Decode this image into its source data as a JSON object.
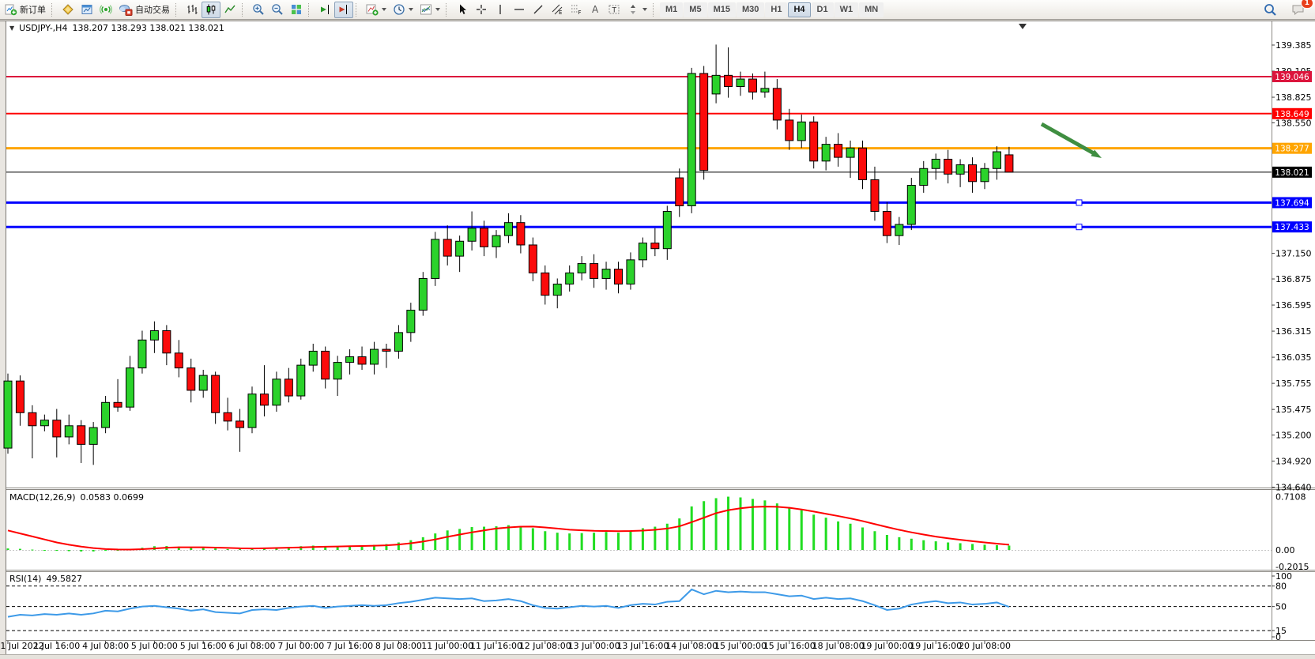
{
  "toolbar": {
    "new_order": "新订单",
    "autotrade": "自动交易",
    "timeframes": [
      "M1",
      "M5",
      "M15",
      "M30",
      "H1",
      "H4",
      "D1",
      "W1",
      "MN"
    ],
    "active_timeframe": "H4",
    "chat_badge": "1"
  },
  "chart": {
    "title_symbol": "USDJPY-,H4",
    "title_ohlc": "138.207 138.293 138.021 138.021",
    "expand_glyph": "▼",
    "shift_marker": "▼"
  },
  "chart_data": {
    "type": "candlestick",
    "symbol": "USDJPY-",
    "timeframe": "H4",
    "current": {
      "open": 138.207,
      "high": 138.293,
      "low": 138.021,
      "close": 138.021
    },
    "colors": {
      "bull": "#2bd22b",
      "bear": "#fb0b0b",
      "outline": "#000000",
      "macd_hist": "#21dd21",
      "macd_signal": "#ff0000",
      "rsi": "#3d9ae8",
      "arrow": "#3f8e41"
    },
    "x_labels": [
      "1 Jul 2022",
      "1 Jul 16:00",
      "4 Jul 08:00",
      "5 Jul 00:00",
      "5 Jul 16:00",
      "6 Jul 08:00",
      "7 Jul 00:00",
      "7 Jul 16:00",
      "8 Jul 08:00",
      "11 Jul 00:00",
      "11 Jul 16:00",
      "12 Jul 08:00",
      "13 Jul 00:00",
      "13 Jul 16:00",
      "14 Jul 08:00",
      "15 Jul 00:00",
      "15 Jul 16:00",
      "18 Jul 08:00",
      "19 Jul 00:00",
      "19 Jul 16:00",
      "20 Jul 08:00"
    ],
    "y_ticks": [
      139.385,
      139.105,
      138.825,
      138.55,
      137.15,
      136.875,
      136.595,
      136.315,
      136.035,
      135.755,
      135.475,
      135.2,
      134.92,
      134.64
    ],
    "levels": [
      {
        "price": 139.046,
        "label": "139.046",
        "color": "#dc143c",
        "width": 2,
        "handle": false
      },
      {
        "price": 138.649,
        "label": "138.649",
        "color": "#ff0000",
        "width": 2,
        "handle": false
      },
      {
        "price": 138.277,
        "label": "138.277",
        "color": "#ffa500",
        "width": 3,
        "handle": false
      },
      {
        "price": 138.021,
        "label": "138.021",
        "color": "#000000",
        "width": 1,
        "handle": false
      },
      {
        "price": 137.694,
        "label": "137.694",
        "color": "#0000ff",
        "width": 3,
        "handle": true
      },
      {
        "price": 137.433,
        "label": "137.433",
        "color": "#0000ff",
        "width": 3,
        "handle": true
      }
    ],
    "candles": [
      [
        135.06,
        135.86,
        135.0,
        135.78
      ],
      [
        135.78,
        135.84,
        135.3,
        135.44
      ],
      [
        135.44,
        135.52,
        134.95,
        135.3
      ],
      [
        135.3,
        135.42,
        135.24,
        135.36
      ],
      [
        135.36,
        135.48,
        134.96,
        135.18
      ],
      [
        135.18,
        135.42,
        135.1,
        135.3
      ],
      [
        135.3,
        135.36,
        134.9,
        135.1
      ],
      [
        135.1,
        135.34,
        134.88,
        135.28
      ],
      [
        135.28,
        135.62,
        135.22,
        135.55
      ],
      [
        135.55,
        135.8,
        135.45,
        135.5
      ],
      [
        135.5,
        136.05,
        135.46,
        135.92
      ],
      [
        135.92,
        136.32,
        135.86,
        136.22
      ],
      [
        136.22,
        136.42,
        136.08,
        136.32
      ],
      [
        136.32,
        136.38,
        135.95,
        136.08
      ],
      [
        136.08,
        136.22,
        135.82,
        135.92
      ],
      [
        135.92,
        136.02,
        135.55,
        135.68
      ],
      [
        135.68,
        135.9,
        135.6,
        135.84
      ],
      [
        135.84,
        135.88,
        135.32,
        135.44
      ],
      [
        135.44,
        135.6,
        135.25,
        135.35
      ],
      [
        135.35,
        135.48,
        135.02,
        135.28
      ],
      [
        135.28,
        135.72,
        135.22,
        135.64
      ],
      [
        135.64,
        135.95,
        135.4,
        135.52
      ],
      [
        135.52,
        135.88,
        135.45,
        135.8
      ],
      [
        135.8,
        135.92,
        135.55,
        135.62
      ],
      [
        135.62,
        136.02,
        135.58,
        135.95
      ],
      [
        135.95,
        136.18,
        135.88,
        136.1
      ],
      [
        136.1,
        136.15,
        135.7,
        135.8
      ],
      [
        135.8,
        136.05,
        135.62,
        135.98
      ],
      [
        135.98,
        136.12,
        135.85,
        136.04
      ],
      [
        136.04,
        136.15,
        135.9,
        135.96
      ],
      [
        135.96,
        136.2,
        135.85,
        136.12
      ],
      [
        136.12,
        136.18,
        135.92,
        136.1
      ],
      [
        136.1,
        136.38,
        136.02,
        136.3
      ],
      [
        136.3,
        136.62,
        136.2,
        136.54
      ],
      [
        136.54,
        136.95,
        136.48,
        136.88
      ],
      [
        136.88,
        137.38,
        136.8,
        137.3
      ],
      [
        137.3,
        137.45,
        137.02,
        137.12
      ],
      [
        137.12,
        137.34,
        136.95,
        137.28
      ],
      [
        137.28,
        137.6,
        137.18,
        137.42
      ],
      [
        137.42,
        137.5,
        137.12,
        137.22
      ],
      [
        137.22,
        137.4,
        137.1,
        137.34
      ],
      [
        137.34,
        137.58,
        137.26,
        137.48
      ],
      [
        137.48,
        137.56,
        137.15,
        137.24
      ],
      [
        137.24,
        137.32,
        136.85,
        136.94
      ],
      [
        136.94,
        137.02,
        136.6,
        136.7
      ],
      [
        136.7,
        136.88,
        136.56,
        136.82
      ],
      [
        136.82,
        137.02,
        136.74,
        136.94
      ],
      [
        136.94,
        137.12,
        136.86,
        137.04
      ],
      [
        137.04,
        137.14,
        136.78,
        136.88
      ],
      [
        136.88,
        137.06,
        136.76,
        136.98
      ],
      [
        136.98,
        137.06,
        136.72,
        136.82
      ],
      [
        136.82,
        137.16,
        136.76,
        137.08
      ],
      [
        137.08,
        137.32,
        137.0,
        137.26
      ],
      [
        137.26,
        137.42,
        137.12,
        137.2
      ],
      [
        137.2,
        137.66,
        137.08,
        137.6
      ],
      [
        137.96,
        138.06,
        137.54,
        137.66
      ],
      [
        137.66,
        139.14,
        137.58,
        139.08
      ],
      [
        139.08,
        139.16,
        137.94,
        138.04
      ],
      [
        138.86,
        139.39,
        138.76,
        139.06
      ],
      [
        139.06,
        139.36,
        138.82,
        138.94
      ],
      [
        138.94,
        139.1,
        138.84,
        139.02
      ],
      [
        139.02,
        139.08,
        138.8,
        138.88
      ],
      [
        138.88,
        139.1,
        138.82,
        138.92
      ],
      [
        138.92,
        139.02,
        138.48,
        138.58
      ],
      [
        138.58,
        138.7,
        138.26,
        138.36
      ],
      [
        138.36,
        138.64,
        138.28,
        138.56
      ],
      [
        138.56,
        138.62,
        138.06,
        138.14
      ],
      [
        138.14,
        138.4,
        138.04,
        138.32
      ],
      [
        138.32,
        138.44,
        138.08,
        138.18
      ],
      [
        138.18,
        138.36,
        137.96,
        138.28
      ],
      [
        138.28,
        138.36,
        137.84,
        137.94
      ],
      [
        137.94,
        138.08,
        137.5,
        137.6
      ],
      [
        137.6,
        137.7,
        137.26,
        137.34
      ],
      [
        137.34,
        137.54,
        137.24,
        137.46
      ],
      [
        137.46,
        137.96,
        137.4,
        137.88
      ],
      [
        137.88,
        138.14,
        137.8,
        138.06
      ],
      [
        138.06,
        138.22,
        137.94,
        138.16
      ],
      [
        138.16,
        138.26,
        137.9,
        138.0
      ],
      [
        138.0,
        138.16,
        137.86,
        138.1
      ],
      [
        138.1,
        138.18,
        137.8,
        137.92
      ],
      [
        137.92,
        138.12,
        137.84,
        138.06
      ],
      [
        138.06,
        138.3,
        137.94,
        138.24
      ],
      [
        138.207,
        138.293,
        138.021,
        138.021
      ]
    ],
    "macd": {
      "label": "MACD(12,26,9)",
      "values_text": "0.0583 0.0699",
      "axis": [
        "0.7108",
        "0.00",
        "-0.2015"
      ],
      "hist": [
        0.02,
        0.015,
        0.005,
        -0.005,
        -0.012,
        -0.016,
        -0.02,
        -0.02,
        -0.012,
        -0.005,
        0.01,
        0.03,
        0.05,
        0.052,
        0.045,
        0.032,
        0.028,
        0.02,
        0.012,
        0.01,
        0.018,
        0.028,
        0.032,
        0.04,
        0.05,
        0.058,
        0.052,
        0.05,
        0.058,
        0.06,
        0.068,
        0.078,
        0.1,
        0.13,
        0.17,
        0.22,
        0.26,
        0.28,
        0.305,
        0.31,
        0.315,
        0.33,
        0.32,
        0.29,
        0.25,
        0.23,
        0.22,
        0.225,
        0.23,
        0.24,
        0.23,
        0.26,
        0.29,
        0.31,
        0.35,
        0.42,
        0.58,
        0.65,
        0.69,
        0.71,
        0.7,
        0.68,
        0.66,
        0.62,
        0.57,
        0.53,
        0.47,
        0.43,
        0.38,
        0.35,
        0.3,
        0.25,
        0.2,
        0.17,
        0.15,
        0.13,
        0.115,
        0.1,
        0.09,
        0.08,
        0.07,
        0.064,
        0.058
      ],
      "signal": [
        0.26,
        0.22,
        0.18,
        0.14,
        0.1,
        0.07,
        0.045,
        0.025,
        0.012,
        0.006,
        0.005,
        0.01,
        0.02,
        0.03,
        0.035,
        0.036,
        0.035,
        0.032,
        0.028,
        0.022,
        0.02,
        0.022,
        0.026,
        0.03,
        0.034,
        0.04,
        0.044,
        0.046,
        0.05,
        0.052,
        0.056,
        0.062,
        0.072,
        0.09,
        0.112,
        0.14,
        0.175,
        0.205,
        0.235,
        0.26,
        0.285,
        0.3,
        0.31,
        0.312,
        0.3,
        0.285,
        0.27,
        0.262,
        0.255,
        0.252,
        0.25,
        0.252,
        0.258,
        0.268,
        0.285,
        0.315,
        0.37,
        0.43,
        0.49,
        0.53,
        0.555,
        0.572,
        0.578,
        0.575,
        0.562,
        0.54,
        0.512,
        0.482,
        0.452,
        0.42,
        0.385,
        0.345,
        0.305,
        0.268,
        0.235,
        0.205,
        0.178,
        0.155,
        0.135,
        0.117,
        0.1,
        0.084,
        0.07
      ]
    },
    "rsi": {
      "label": "RSI(14)",
      "value_text": "49.5827",
      "axis": [
        "100",
        "80",
        "50",
        "15",
        "0"
      ],
      "level_lines": [
        80,
        50,
        15
      ],
      "values": [
        35,
        38,
        37,
        39,
        38,
        40,
        38,
        40,
        44,
        43,
        47,
        50,
        51,
        49,
        47,
        44,
        46,
        42,
        41,
        40,
        45,
        46,
        45,
        48,
        50,
        51,
        48,
        50,
        51,
        52,
        51,
        52,
        55,
        57,
        60,
        63,
        62,
        61,
        62,
        58,
        59,
        61,
        58,
        52,
        48,
        47,
        49,
        51,
        50,
        51,
        48,
        52,
        54,
        53,
        57,
        58,
        75,
        68,
        73,
        71,
        72,
        71,
        71,
        68,
        65,
        66,
        61,
        63,
        61,
        62,
        58,
        52,
        45,
        47,
        53,
        56,
        58,
        55,
        56,
        53,
        54,
        56,
        49.58
      ]
    },
    "annotation_arrow": {
      "from": [
        1318,
        157
      ],
      "to": [
        1394,
        200
      ]
    }
  }
}
